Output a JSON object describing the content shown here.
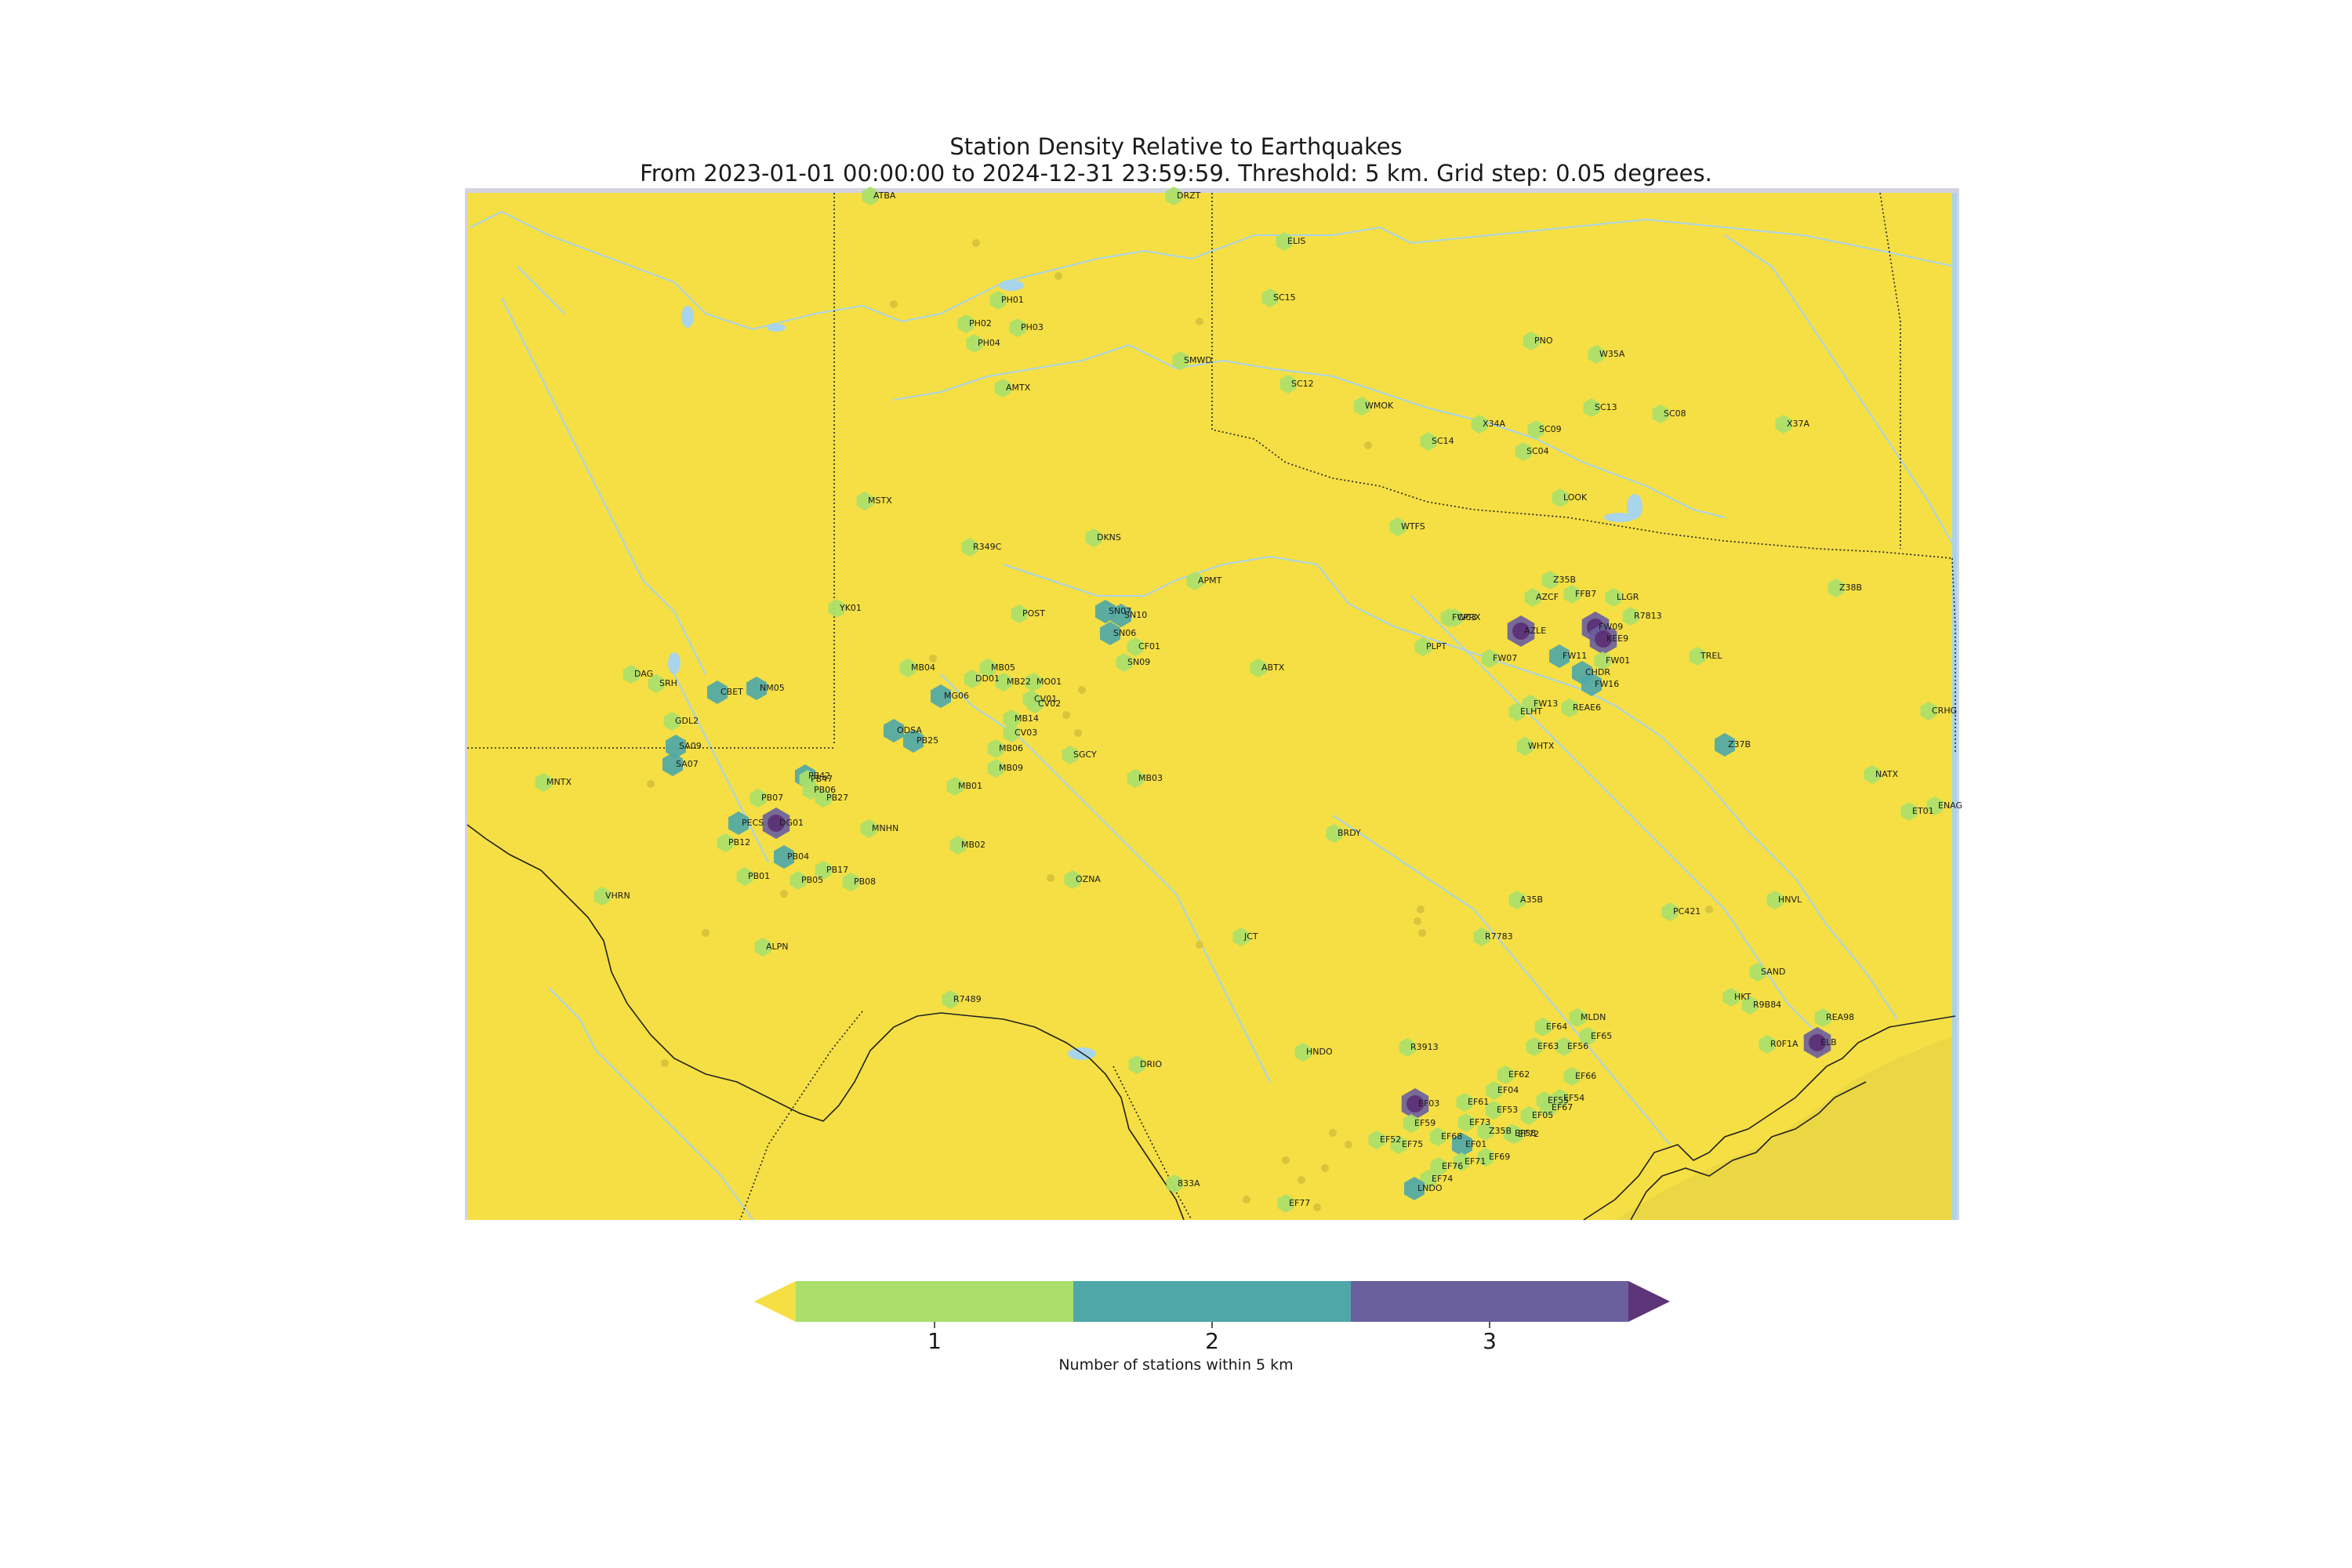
{
  "title": "Station Density Relative to Earthquakes",
  "subtitle": "From 2023-01-01 00:00:00 to 2024-12-31 23:59:59. Threshold: 5 km. Grid step: 0.05 degrees.",
  "colors": {
    "background": "#f5df44",
    "frame": "#d4d4e0",
    "water": "#a8d4ec",
    "level1": "#a9df6a",
    "level2": "#4fa7a8",
    "level3": "#6b609e",
    "over": "#5e3478",
    "under": "#f5df44"
  },
  "colorbar": {
    "ticks": [
      "1",
      "2",
      "3"
    ],
    "label": "Number of stations within 5 km"
  },
  "stations": [
    {
      "name": "ATBA",
      "level": 1
    },
    {
      "name": "DRZT",
      "level": 1
    },
    {
      "name": "ELIS",
      "level": 1
    },
    {
      "name": "PH01",
      "level": 1
    },
    {
      "name": "PH02",
      "level": 1
    },
    {
      "name": "PH03",
      "level": 1
    },
    {
      "name": "PH04",
      "level": 1
    },
    {
      "name": "SC15",
      "level": 1
    },
    {
      "name": "SMWD",
      "level": 1
    },
    {
      "name": "AMTX",
      "level": 1
    },
    {
      "name": "SC12",
      "level": 1
    },
    {
      "name": "WMOK",
      "level": 1
    },
    {
      "name": "PNO",
      "level": 1
    },
    {
      "name": "W35A",
      "level": 1
    },
    {
      "name": "SC13",
      "level": 1
    },
    {
      "name": "SC08",
      "level": 1
    },
    {
      "name": "X34A",
      "level": 1
    },
    {
      "name": "SC09",
      "level": 1
    },
    {
      "name": "X37A",
      "level": 1
    },
    {
      "name": "SC14",
      "level": 1
    },
    {
      "name": "SC04",
      "level": 1
    },
    {
      "name": "MSTX",
      "level": 1
    },
    {
      "name": "LOOK",
      "level": 1
    },
    {
      "name": "WTFS",
      "level": 1
    },
    {
      "name": "DKNS",
      "level": 1
    },
    {
      "name": "R349C",
      "level": 1
    },
    {
      "name": "APMT",
      "level": 1
    },
    {
      "name": "Z35B",
      "level": 1
    },
    {
      "name": "Z38B",
      "level": 1
    },
    {
      "name": "AZCF",
      "level": 1
    },
    {
      "name": "FFB7",
      "level": 1
    },
    {
      "name": "LLGR",
      "level": 1
    },
    {
      "name": "R7813",
      "level": 1
    },
    {
      "name": "YK01",
      "level": 1
    },
    {
      "name": "POST",
      "level": 1
    },
    {
      "name": "SN07",
      "level": 2
    },
    {
      "name": "SN10",
      "level": 2
    },
    {
      "name": "CPRX",
      "level": 1
    },
    {
      "name": "FW03",
      "level": 1
    },
    {
      "name": "AZLE",
      "level": 3
    },
    {
      "name": "FW09",
      "level": 3
    },
    {
      "name": "KEE9",
      "level": 3
    },
    {
      "name": "PLPT",
      "level": 1
    },
    {
      "name": "CF01",
      "level": 1
    },
    {
      "name": "SN09",
      "level": 1
    },
    {
      "name": "SN06",
      "level": 2
    },
    {
      "name": "ABTX",
      "level": 1
    },
    {
      "name": "FW07",
      "level": 1
    },
    {
      "name": "FW11",
      "level": 2
    },
    {
      "name": "FW01",
      "level": 1
    },
    {
      "name": "TREL",
      "level": 1
    },
    {
      "name": "MB04",
      "level": 1
    },
    {
      "name": "MB05",
      "level": 1
    },
    {
      "name": "DAG",
      "level": 1
    },
    {
      "name": "SRH",
      "level": 1
    },
    {
      "name": "DD01",
      "level": 1
    },
    {
      "name": "MB22",
      "level": 1
    },
    {
      "name": "MO01",
      "level": 1
    },
    {
      "name": "CHDR",
      "level": 2
    },
    {
      "name": "FW16",
      "level": 2
    },
    {
      "name": "CBET",
      "level": 2
    },
    {
      "name": "NM05",
      "level": 2
    },
    {
      "name": "MG06",
      "level": 2
    },
    {
      "name": "CV01",
      "level": 1
    },
    {
      "name": "CV02",
      "level": 1
    },
    {
      "name": "FW13",
      "level": 1
    },
    {
      "name": "REAE6",
      "level": 1
    },
    {
      "name": "CRHG",
      "level": 1
    },
    {
      "name": "GDL2",
      "level": 1
    },
    {
      "name": "MB14",
      "level": 1
    },
    {
      "name": "CV03",
      "level": 1
    },
    {
      "name": "ELHT",
      "level": 1
    },
    {
      "name": "ODSA",
      "level": 2
    },
    {
      "name": "PB25",
      "level": 2
    },
    {
      "name": "MB06",
      "level": 1
    },
    {
      "name": "WHTX",
      "level": 1
    },
    {
      "name": "Z37B",
      "level": 2
    },
    {
      "name": "SA09",
      "level": 2
    },
    {
      "name": "SGCY",
      "level": 1
    },
    {
      "name": "MB09",
      "level": 1
    },
    {
      "name": "SA07",
      "level": 2
    },
    {
      "name": "PB42",
      "level": 2
    },
    {
      "name": "PB47",
      "level": 1
    },
    {
      "name": "MB03",
      "level": 1
    },
    {
      "name": "NATX",
      "level": 1
    },
    {
      "name": "MNTX",
      "level": 1
    },
    {
      "name": "PB06",
      "level": 1
    },
    {
      "name": "PB27",
      "level": 1
    },
    {
      "name": "MB01",
      "level": 1
    },
    {
      "name": "ET01",
      "level": 1
    },
    {
      "name": "ENAG",
      "level": 1
    },
    {
      "name": "PB07",
      "level": 1
    },
    {
      "name": "PECS",
      "level": 2
    },
    {
      "name": "DG01",
      "level": 3
    },
    {
      "name": "MNHN",
      "level": 1
    },
    {
      "name": "BRDY",
      "level": 1
    },
    {
      "name": "PB12",
      "level": 1
    },
    {
      "name": "MB02",
      "level": 1
    },
    {
      "name": "PB04",
      "level": 2
    },
    {
      "name": "PB17",
      "level": 1
    },
    {
      "name": "PB01",
      "level": 1
    },
    {
      "name": "PB05",
      "level": 1
    },
    {
      "name": "PB08",
      "level": 1
    },
    {
      "name": "OZNA",
      "level": 1
    },
    {
      "name": "VHRN",
      "level": 1
    },
    {
      "name": "A35B",
      "level": 1
    },
    {
      "name": "HNVL",
      "level": 1
    },
    {
      "name": "PC421",
      "level": 1
    },
    {
      "name": "JCT",
      "level": 1
    },
    {
      "name": "R7783",
      "level": 1
    },
    {
      "name": "ALPN",
      "level": 1
    },
    {
      "name": "R7489",
      "level": 1
    },
    {
      "name": "SAND",
      "level": 1
    },
    {
      "name": "HKT",
      "level": 1
    },
    {
      "name": "R9B84",
      "level": 1
    },
    {
      "name": "EF64",
      "level": 1
    },
    {
      "name": "MLDN",
      "level": 1
    },
    {
      "name": "EF65",
      "level": 1
    },
    {
      "name": "REA98",
      "level": 1
    },
    {
      "name": "EF63",
      "level": 1
    },
    {
      "name": "EF56",
      "level": 1
    },
    {
      "name": "R3913",
      "level": 1
    },
    {
      "name": "HNDO",
      "level": 1
    },
    {
      "name": "R0F1A",
      "level": 1
    },
    {
      "name": "ELB",
      "level": 3
    },
    {
      "name": "DRIO",
      "level": 1
    },
    {
      "name": "EF62",
      "level": 1
    },
    {
      "name": "EF66",
      "level": 1
    },
    {
      "name": "EF04",
      "level": 1
    },
    {
      "name": "EF55",
      "level": 1
    },
    {
      "name": "EF54",
      "level": 1
    },
    {
      "name": "EF67",
      "level": 1
    },
    {
      "name": "EF03",
      "level": 3
    },
    {
      "name": "EF61",
      "level": 1
    },
    {
      "name": "EF53",
      "level": 1
    },
    {
      "name": "EF05",
      "level": 1
    },
    {
      "name": "EF59",
      "level": 1
    },
    {
      "name": "EF73",
      "level": 1
    },
    {
      "name": "Z35B",
      "level": 1
    },
    {
      "name": "EF72",
      "level": 1
    },
    {
      "name": "EF58",
      "level": 1
    },
    {
      "name": "EF52",
      "level": 1
    },
    {
      "name": "EF68",
      "level": 1
    },
    {
      "name": "EF01",
      "level": 2
    },
    {
      "name": "EF75",
      "level": 1
    },
    {
      "name": "EF69",
      "level": 1
    },
    {
      "name": "EF71",
      "level": 1
    },
    {
      "name": "EF76",
      "level": 1
    },
    {
      "name": "EF74",
      "level": 1
    },
    {
      "name": "LNDO",
      "level": 2
    },
    {
      "name": "833A",
      "level": 1
    },
    {
      "name": "EF77",
      "level": 1
    }
  ]
}
